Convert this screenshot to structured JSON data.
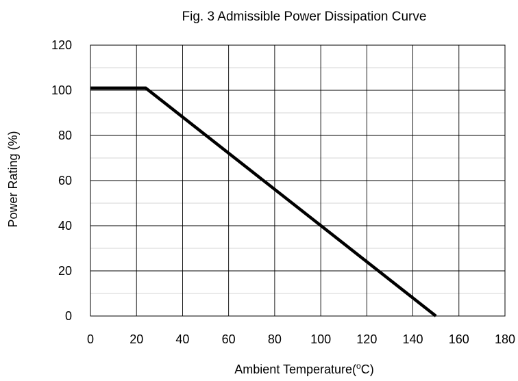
{
  "chart_data": {
    "type": "line",
    "title": "Fig. 3 Admissible Power Dissipation Curve",
    "xlabel": {
      "prefix": "Ambient Temperature(",
      "sup": "o",
      "suffix": "C)"
    },
    "ylabel": "Power Rating (%)",
    "xlim": [
      0,
      180
    ],
    "ylim": [
      0,
      120
    ],
    "x_ticks": [
      0,
      20,
      40,
      60,
      80,
      100,
      120,
      140,
      160,
      180
    ],
    "y_ticks": [
      0,
      20,
      40,
      60,
      80,
      100,
      120
    ],
    "x_minor_step": 20,
    "y_minor_step": 10,
    "grid": true,
    "legend": "none",
    "series": [
      {
        "x": [
          0,
          24,
          150
        ],
        "y": [
          101,
          101,
          0
        ],
        "color": "#000000"
      }
    ]
  }
}
